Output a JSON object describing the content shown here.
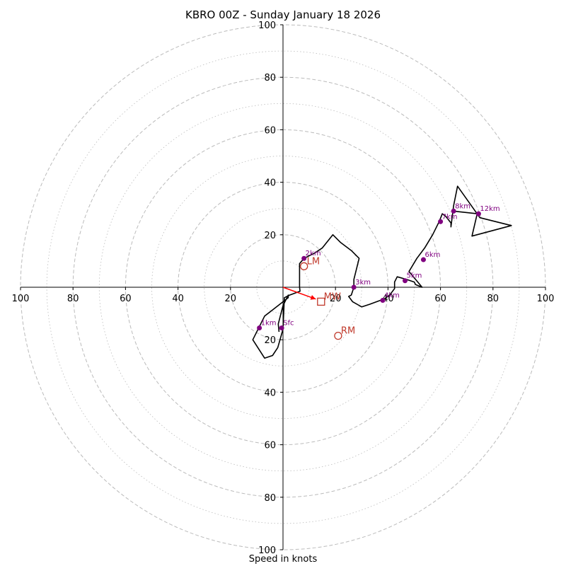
{
  "chart_data": {
    "type": "hodograph",
    "title": "KBRO 00Z - Sunday January 18 2026",
    "xlabel": "Speed in knots",
    "range": [
      -100,
      100
    ],
    "major_rings": [
      20,
      40,
      60,
      80,
      100
    ],
    "minor_rings": [
      10,
      30,
      50,
      70,
      90
    ],
    "tick_labels": {
      "x": [
        "100",
        "80",
        "60",
        "40",
        "20",
        "20",
        "40",
        "60",
        "80",
        "100"
      ],
      "y": [
        "100",
        "80",
        "60",
        "40",
        "20",
        "20",
        "40",
        "60",
        "80",
        "100"
      ]
    },
    "tick_values": {
      "x": [
        -100,
        -80,
        -60,
        -40,
        -20,
        20,
        40,
        60,
        80,
        100
      ],
      "y": [
        100,
        80,
        60,
        40,
        20,
        -20,
        -40,
        -60,
        -80,
        -100
      ]
    },
    "trace": {
      "u": [
        -1.5,
        -1.8,
        0,
        2,
        2,
        -7,
        -11.5,
        -7,
        -4,
        -2,
        0,
        0.5,
        2.5,
        6.5,
        6.3,
        6.3,
        8,
        12,
        15,
        19,
        22,
        26,
        29,
        27,
        27,
        26,
        25,
        26.5,
        30,
        33,
        37,
        38.5,
        40,
        41,
        42.5,
        42.5,
        43.5,
        47,
        50,
        50.5,
        53,
        48,
        51,
        54,
        57,
        59.5,
        60.7,
        62,
        64,
        64,
        65,
        66.5,
        75,
        87,
        72,
        74,
        65
      ],
      "v": [
        -17,
        -14,
        -7,
        -3,
        -4,
        -11,
        -20,
        -27,
        -26,
        -23,
        -16,
        -4,
        -3,
        -1.5,
        0,
        9,
        11,
        13,
        15,
        20,
        17,
        14,
        11,
        3,
        0,
        -3,
        -3.5,
        -5.5,
        -7.5,
        -6.5,
        -5,
        -4.5,
        -3.5,
        -2.5,
        -0.5,
        2,
        4,
        3,
        2,
        1,
        0,
        6,
        11,
        15,
        20,
        25,
        28,
        27,
        24.5,
        23,
        31,
        38.5,
        26.5,
        23.5,
        19.5,
        28,
        29
      ]
    },
    "height_markers": [
      {
        "label": "Sfc",
        "u": -0.5,
        "v": -15.5
      },
      {
        "label": "1km",
        "u": -9,
        "v": -15.5
      },
      {
        "label": "2km",
        "u": 8,
        "v": 11
      },
      {
        "label": "3km",
        "u": 27,
        "v": 0
      },
      {
        "label": "4km",
        "u": 38,
        "v": -5
      },
      {
        "label": "5km",
        "u": 46.5,
        "v": 2.5
      },
      {
        "label": "6km",
        "u": 53.5,
        "v": 10.5
      },
      {
        "label": "7km",
        "u": 60,
        "v": 25
      },
      {
        "label": "8km",
        "u": 65,
        "v": 29
      },
      {
        "label": "12km",
        "u": 74.5,
        "v": 28
      }
    ],
    "storm_motions": [
      {
        "label": "LM",
        "u": 8,
        "v": 8,
        "marker": "circle"
      },
      {
        "label": "RM",
        "u": 21,
        "v": -18.5,
        "marker": "circle"
      },
      {
        "label": "MW",
        "u": 14.5,
        "v": -5.5,
        "marker": "square"
      }
    ],
    "mean_wind_vector": {
      "u": 12.5,
      "v": -4.5
    },
    "colors": {
      "trace": "#000000",
      "markers": "#800080",
      "storm_motion": "#c0392b",
      "vector": "#ff0000",
      "grid": "#bbbbbb"
    }
  }
}
